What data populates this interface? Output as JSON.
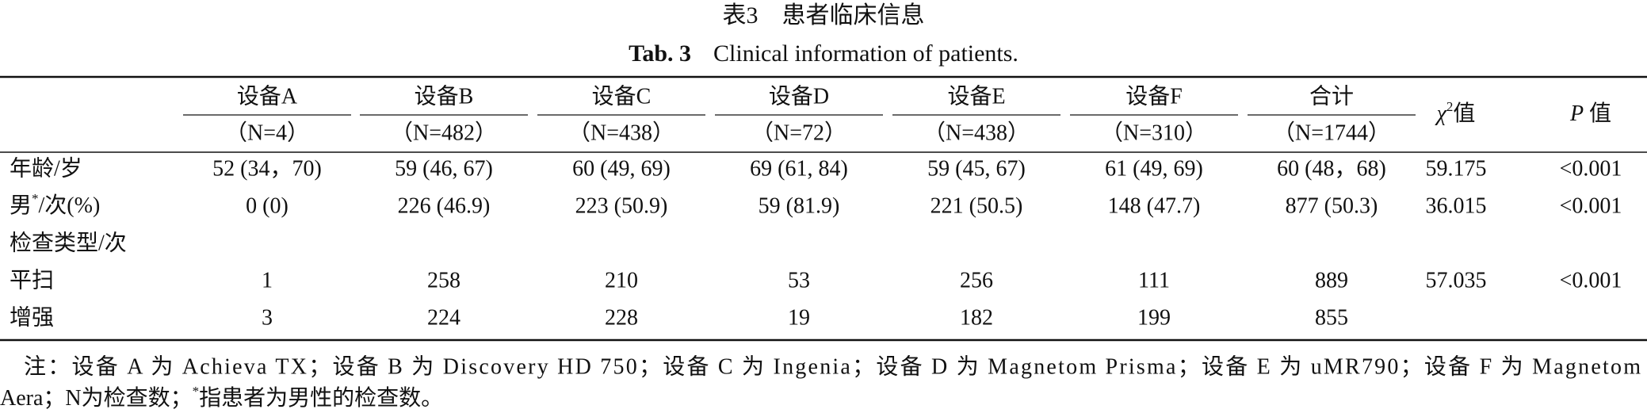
{
  "title": "表3　患者临床信息",
  "subtitle": {
    "label": "Tab. 3",
    "text": "Clinical information of patients."
  },
  "table": {
    "header": {
      "groups": [
        {
          "name": "设备A",
          "n": "（N=4）"
        },
        {
          "name": "设备B",
          "n": "（N=482）"
        },
        {
          "name": "设备C",
          "n": "（N=438）"
        },
        {
          "name": "设备D",
          "n": "（N=72）"
        },
        {
          "name": "设备E",
          "n": "（N=438）"
        },
        {
          "name": "设备F",
          "n": "（N=310）"
        },
        {
          "name": "合计",
          "n": "（N=1744）"
        }
      ],
      "chi2": {
        "symbol": "χ",
        "sup": "2",
        "suffix": "值"
      },
      "p": {
        "symbol": "P",
        "suffix": " 值"
      }
    },
    "rows": [
      [
        "年龄/岁",
        "52 (34，70)",
        "59 (46, 67)",
        "60 (49, 69)",
        "69 (61, 84)",
        "59 (45, 67)",
        "61 (49, 69)",
        "60 (48，68)",
        "59.175",
        "<0.001"
      ],
      [
        {
          "text": "男",
          "sup": "*",
          "rest": "/次(%)"
        },
        "0 (0)",
        "226 (46.9)",
        "223 (50.9)",
        "59 (81.9)",
        "221 (50.5)",
        "148 (47.7)",
        "877 (50.3)",
        "36.015",
        "<0.001"
      ],
      [
        "检查类型/次"
      ],
      [
        "平扫",
        "1",
        "258",
        "210",
        "53",
        "256",
        "111",
        "889",
        "57.035",
        "<0.001"
      ],
      [
        "增强",
        "3",
        "224",
        "228",
        "19",
        "182",
        "199",
        "855"
      ]
    ]
  },
  "note": {
    "line1": "注：设备 A 为 Achieva TX；设备 B 为 Discovery HD 750；设备 C 为 Ingenia；设备 D 为 Magnetom Prisma；设备 E 为 uMR790；设备 F 为 Magnetom",
    "line2_pre": "Aera；N为检查数；",
    "sup": "*",
    "line2_post": "指患者为男性的检查数。"
  }
}
